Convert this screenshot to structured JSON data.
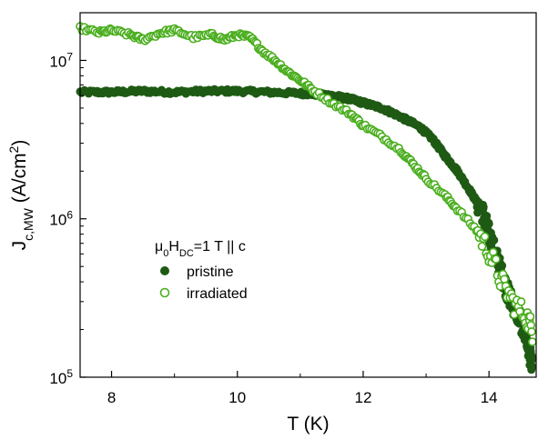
{
  "chart_data": {
    "type": "scatter",
    "title": "",
    "xlabel": "T (K)",
    "ylabel": "J_c,MW (A/cm^2)",
    "xlim": [
      7.5,
      14.75
    ],
    "ylim": [
      100000,
      20000000
    ],
    "yscale": "log",
    "x_ticks": [
      8,
      10,
      12,
      14
    ],
    "x_tick_labels": [
      "8",
      "10",
      "12",
      "14"
    ],
    "y_ticks": [
      100000,
      1000000,
      10000000
    ],
    "y_tick_labels": [
      {
        "base": "10",
        "exp": "5"
      },
      {
        "base": "10",
        "exp": "6"
      },
      {
        "base": "10",
        "exp": "7"
      }
    ],
    "ylabel_parts": {
      "main": "J",
      "sub": "c,MW",
      "unit": " (A/cm",
      "unit_exp": "2",
      "unit_close": ")"
    },
    "legend": {
      "title_parts": {
        "mu": "μ",
        "sub0": "0",
        "H": "H",
        "subDC": "DC",
        "rest": "=1 T || c"
      },
      "placement": "center-left",
      "entries": [
        "pristine",
        "irradiated"
      ]
    },
    "series": [
      {
        "name": "pristine",
        "marker": "filled-circle",
        "color": "#1f5a14",
        "x": [
          7.5,
          8.0,
          8.5,
          9.0,
          9.5,
          10.0,
          10.5,
          11.0,
          11.3,
          11.5,
          11.8,
          12.0,
          12.3,
          12.6,
          12.9,
          13.1,
          13.3,
          13.5,
          13.7,
          13.9,
          14.0,
          14.1,
          14.2,
          14.3,
          14.4,
          14.5,
          14.6,
          14.7
        ],
        "y": [
          6300000,
          6300000,
          6400000,
          6300000,
          6400000,
          6400000,
          6300000,
          6200000,
          6100000,
          6000000,
          5700000,
          5400000,
          5000000,
          4400000,
          3800000,
          3200000,
          2500000,
          2000000,
          1500000,
          1100000,
          800000,
          600000,
          450000,
          340000,
          280000,
          230000,
          170000,
          110000
        ]
      },
      {
        "name": "irradiated",
        "marker": "open-circle",
        "color": "#4aae1e",
        "x": [
          7.5,
          7.8,
          8.0,
          8.3,
          8.5,
          8.8,
          9.0,
          9.3,
          9.6,
          9.8,
          10.0,
          10.2,
          10.4,
          10.6,
          10.8,
          11.0,
          11.2,
          11.5,
          11.8,
          12.0,
          12.3,
          12.6,
          12.8,
          13.0,
          13.3,
          13.5,
          13.8,
          14.0,
          14.2,
          14.4,
          14.6,
          14.7
        ],
        "y": [
          16000000,
          15000000,
          15500000,
          14500000,
          13500000,
          15000000,
          15500000,
          14000000,
          14500000,
          13500000,
          14500000,
          14000000,
          11500000,
          10000000,
          8500000,
          7500000,
          6500000,
          5400000,
          4600000,
          3900000,
          3300000,
          2700000,
          2200000,
          1800000,
          1400000,
          1150000,
          850000,
          620000,
          400000,
          290000,
          240000,
          190000
        ]
      }
    ]
  }
}
